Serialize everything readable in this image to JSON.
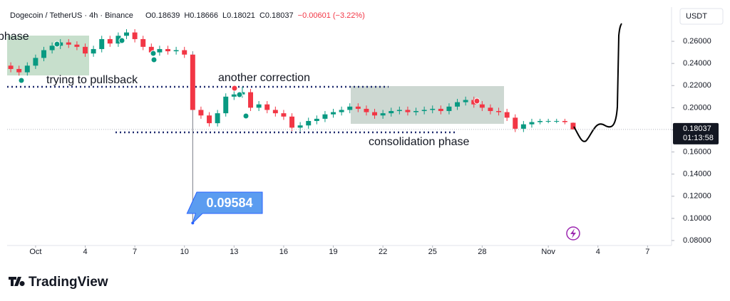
{
  "chart_data": {
    "type": "candlestick",
    "title": "Dogecoin / TetherUS · 4h · Binance",
    "ohlc_header": [
      "O0.18639",
      "H0.18666",
      "L0.18021",
      "C0.18037",
      "−0.00601 (−3.22%)"
    ],
    "currency": "USDT",
    "countdown": "01:13:58",
    "brand": "TradingView",
    "annotations": [
      "phase",
      "trying to pullsback",
      "another correction",
      "consolidation phase"
    ],
    "up_color": "#089981",
    "down_color": "#f23645",
    "x": [
      -0.5,
      0,
      0.5,
      1,
      1.5,
      2,
      2.5,
      3,
      3.5,
      4,
      4.5,
      5,
      5.5,
      6,
      6.5,
      7,
      7.5,
      8,
      8.5,
      9,
      9.5,
      10,
      10.5,
      11,
      11.5,
      12,
      12.5,
      13,
      13.5,
      14,
      14.5,
      15,
      15.5,
      16,
      16.5,
      17,
      17.5,
      18,
      18.5,
      19,
      19.5,
      20,
      20.5,
      21,
      21.5,
      22,
      22.5,
      23,
      23.5,
      24,
      24.5,
      25,
      25.5,
      26,
      26.5,
      27,
      27.5,
      28,
      28.5,
      29,
      29.5,
      30,
      30.5,
      31,
      31.5,
      32,
      32.5,
      33,
      33.5
    ],
    "open": [
      0.238,
      0.235,
      0.232,
      0.238,
      0.245,
      0.252,
      0.256,
      0.259,
      0.257,
      0.255,
      0.249,
      0.253,
      0.262,
      0.258,
      0.265,
      0.268,
      0.262,
      0.255,
      0.25,
      0.253,
      0.251,
      0.252,
      0.248,
      0.198,
      0.193,
      0.186,
      0.195,
      0.21,
      0.212,
      0.214,
      0.2,
      0.203,
      0.198,
      0.195,
      0.192,
      0.182,
      0.184,
      0.188,
      0.19,
      0.194,
      0.196,
      0.198,
      0.201,
      0.199,
      0.196,
      0.193,
      0.195,
      0.197,
      0.198,
      0.196,
      0.197,
      0.198,
      0.199,
      0.197,
      0.201,
      0.205,
      0.207,
      0.203,
      0.2,
      0.197,
      0.196,
      0.191,
      0.181,
      0.185,
      0.187,
      0.188,
      0.188,
      0.188,
      0.18639
    ],
    "high": [
      0.241,
      0.238,
      0.241,
      0.248,
      0.255,
      0.259,
      0.262,
      0.262,
      0.26,
      0.258,
      0.256,
      0.265,
      0.265,
      0.268,
      0.271,
      0.271,
      0.265,
      0.258,
      0.256,
      0.256,
      0.255,
      0.255,
      0.251,
      0.201,
      0.196,
      0.198,
      0.213,
      0.215,
      0.219,
      0.217,
      0.206,
      0.206,
      0.201,
      0.198,
      0.195,
      0.187,
      0.191,
      0.193,
      0.197,
      0.199,
      0.201,
      0.204,
      0.204,
      0.202,
      0.199,
      0.198,
      0.2,
      0.201,
      0.201,
      0.2,
      0.201,
      0.202,
      0.202,
      0.204,
      0.208,
      0.21,
      0.21,
      0.206,
      0.203,
      0.2,
      0.199,
      0.194,
      0.188,
      0.19,
      0.19,
      0.19,
      0.19,
      0.19,
      0.18666
    ],
    "low": [
      0.232,
      0.229,
      0.229,
      0.235,
      0.242,
      0.249,
      0.253,
      0.254,
      0.252,
      0.246,
      0.246,
      0.25,
      0.255,
      0.255,
      0.262,
      0.259,
      0.252,
      0.247,
      0.247,
      0.248,
      0.248,
      0.245,
      0.09584,
      0.19,
      0.183,
      0.183,
      0.192,
      0.207,
      0.209,
      0.197,
      0.197,
      0.195,
      0.192,
      0.189,
      0.179,
      0.179,
      0.181,
      0.185,
      0.187,
      0.191,
      0.193,
      0.195,
      0.196,
      0.193,
      0.19,
      0.19,
      0.192,
      0.194,
      0.193,
      0.193,
      0.194,
      0.195,
      0.194,
      0.194,
      0.198,
      0.202,
      0.2,
      0.197,
      0.194,
      0.193,
      0.188,
      0.178,
      0.178,
      0.182,
      0.185,
      0.186,
      0.186,
      0.185,
      0.18021
    ],
    "close": [
      0.235,
      0.232,
      0.238,
      0.245,
      0.252,
      0.256,
      0.259,
      0.257,
      0.255,
      0.249,
      0.253,
      0.262,
      0.258,
      0.265,
      0.268,
      0.262,
      0.255,
      0.25,
      0.253,
      0.251,
      0.252,
      0.248,
      0.198,
      0.193,
      0.186,
      0.195,
      0.21,
      0.212,
      0.214,
      0.2,
      0.203,
      0.198,
      0.195,
      0.192,
      0.182,
      0.184,
      0.188,
      0.19,
      0.194,
      0.196,
      0.198,
      0.201,
      0.199,
      0.196,
      0.193,
      0.195,
      0.197,
      0.198,
      0.196,
      0.197,
      0.198,
      0.199,
      0.197,
      0.201,
      0.205,
      0.207,
      0.203,
      0.2,
      0.197,
      0.196,
      0.191,
      0.181,
      0.185,
      0.187,
      0.188,
      0.188,
      0.188,
      0.187,
      0.18037
    ],
    "xlim": [
      -0.72,
      39.45
    ],
    "xticks": [
      {
        "value": 1,
        "label": "Oct"
      },
      4,
      7,
      10,
      13,
      16,
      19,
      22,
      25,
      28,
      {
        "value": 32,
        "label": "Nov"
      },
      {
        "value": 35,
        "label": "4"
      },
      {
        "value": 38,
        "label": "7"
      }
    ],
    "ylim": [
      0.0755,
      0.2909
    ],
    "yticks": [
      {
        "value": 0.08,
        "label": "0.08000"
      },
      {
        "value": 0.1,
        "label": "0.10000"
      },
      {
        "value": 0.12,
        "label": "0.12000"
      },
      {
        "value": 0.14,
        "label": "0.14000"
      },
      {
        "value": 0.16,
        "label": "0.16000"
      },
      {
        "value": 0.18,
        "label": "0.18000"
      },
      {
        "value": 0.2,
        "label": "0.20000"
      },
      {
        "value": 0.22,
        "label": "0.22000"
      },
      {
        "value": 0.24,
        "label": "0.24000"
      },
      {
        "value": 0.26,
        "label": "0.26000"
      }
    ]
  }
}
